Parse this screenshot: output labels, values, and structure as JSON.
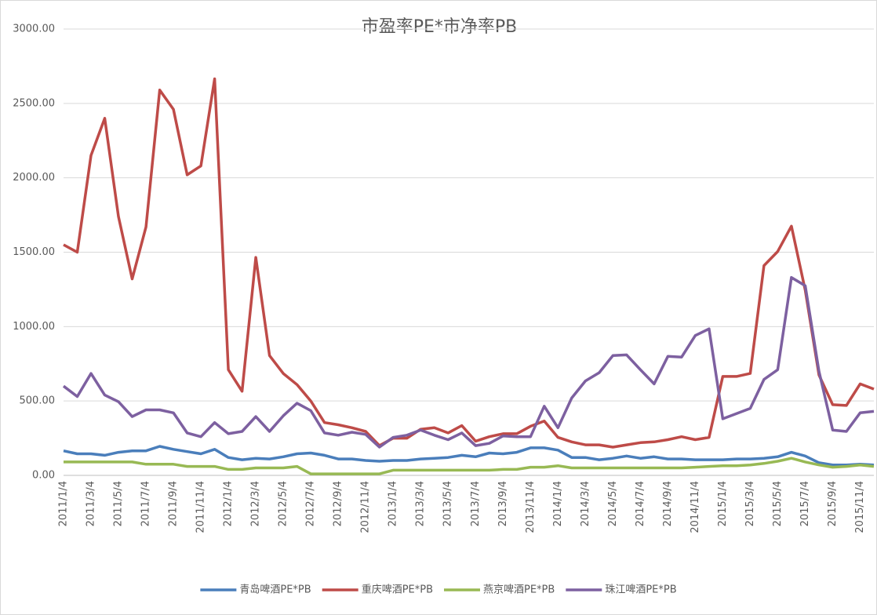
{
  "chart_data": {
    "type": "line",
    "title": "市盈率PE*市净率PB",
    "categories": [
      "2011/1/4",
      null,
      "2011/3/4",
      null,
      "2011/5/4",
      null,
      "2011/7/4",
      null,
      "2011/9/4",
      null,
      "2011/11/4",
      null,
      "2012/1/4",
      null,
      "2012/3/4",
      null,
      "2012/5/4",
      null,
      "2012/7/4",
      null,
      "2012/9/4",
      null,
      "2012/11/4",
      null,
      "2013/1/4",
      null,
      "2013/3/4",
      null,
      "2013/5/4",
      null,
      "2013/7/4",
      null,
      "2013/9/4",
      null,
      "2013/11/4",
      null,
      "2014/1/4",
      null,
      "2014/3/4",
      null,
      "2014/5/4",
      null,
      "2014/7/4",
      null,
      "2014/9/4",
      null,
      "2014/11/4",
      null,
      "2015/1/4",
      null,
      "2015/3/4",
      null,
      "2015/5/4",
      null,
      "2015/7/4",
      null,
      "2015/9/4",
      null,
      "2015/11/4",
      null
    ],
    "series": [
      {
        "name": "青岛啤酒PE*PB",
        "color": "#4a7ebb",
        "values": [
          165,
          145,
          145,
          135,
          155,
          165,
          165,
          195,
          175,
          160,
          145,
          175,
          120,
          105,
          115,
          110,
          125,
          145,
          150,
          135,
          110,
          110,
          100,
          95,
          100,
          100,
          110,
          115,
          120,
          135,
          125,
          150,
          145,
          155,
          185,
          185,
          170,
          120,
          120,
          105,
          115,
          130,
          115,
          125,
          110,
          110,
          105,
          105,
          105,
          110,
          110,
          115,
          125,
          155,
          130,
          85,
          70,
          70,
          75,
          70
        ]
      },
      {
        "name": "重庆啤酒PE*PB",
        "color": "#be4b48",
        "values": [
          1550,
          1500,
          2150,
          2400,
          1740,
          1320,
          1670,
          2590,
          2460,
          2020,
          2080,
          2665,
          710,
          565,
          1465,
          805,
          685,
          610,
          500,
          355,
          340,
          320,
          295,
          200,
          250,
          250,
          310,
          320,
          285,
          335,
          230,
          260,
          280,
          280,
          330,
          365,
          255,
          225,
          205,
          205,
          190,
          205,
          220,
          225,
          240,
          260,
          240,
          255,
          665,
          665,
          685,
          1410,
          1505,
          1675,
          1245,
          675,
          475,
          470,
          615,
          580
        ]
      },
      {
        "name": "燕京啤酒PE*PB",
        "color": "#98b954",
        "values": [
          90,
          90,
          90,
          90,
          90,
          90,
          75,
          75,
          75,
          60,
          60,
          60,
          40,
          40,
          50,
          50,
          50,
          60,
          10,
          10,
          10,
          10,
          10,
          10,
          35,
          35,
          35,
          35,
          35,
          35,
          35,
          35,
          40,
          40,
          55,
          55,
          65,
          50,
          50,
          50,
          50,
          50,
          50,
          50,
          50,
          50,
          55,
          60,
          65,
          65,
          70,
          80,
          95,
          115,
          90,
          70,
          55,
          60,
          70,
          60
        ]
      },
      {
        "name": "珠江啤酒PE*PB",
        "color": "#7d60a0",
        "values": [
          600,
          530,
          685,
          540,
          495,
          395,
          440,
          440,
          420,
          285,
          260,
          355,
          280,
          295,
          395,
          295,
          400,
          485,
          435,
          285,
          270,
          290,
          275,
          190,
          255,
          270,
          305,
          270,
          240,
          285,
          200,
          215,
          265,
          260,
          260,
          465,
          320,
          520,
          635,
          690,
          805,
          810,
          710,
          615,
          800,
          795,
          940,
          985,
          380,
          415,
          450,
          645,
          710,
          1330,
          1275,
          700,
          305,
          295,
          420,
          430
        ]
      }
    ],
    "ylim": [
      0,
      3000
    ],
    "yticks": [
      {
        "value": 0,
        "label": "0.00"
      },
      {
        "value": 500,
        "label": "500.00"
      },
      {
        "value": 1000,
        "label": "1000.00"
      },
      {
        "value": 1500,
        "label": "1500.00"
      },
      {
        "value": 2000,
        "label": "2000.00"
      },
      {
        "value": 2500,
        "label": "2500.00"
      },
      {
        "value": 3000,
        "label": "3000.00"
      }
    ],
    "grid": true
  }
}
